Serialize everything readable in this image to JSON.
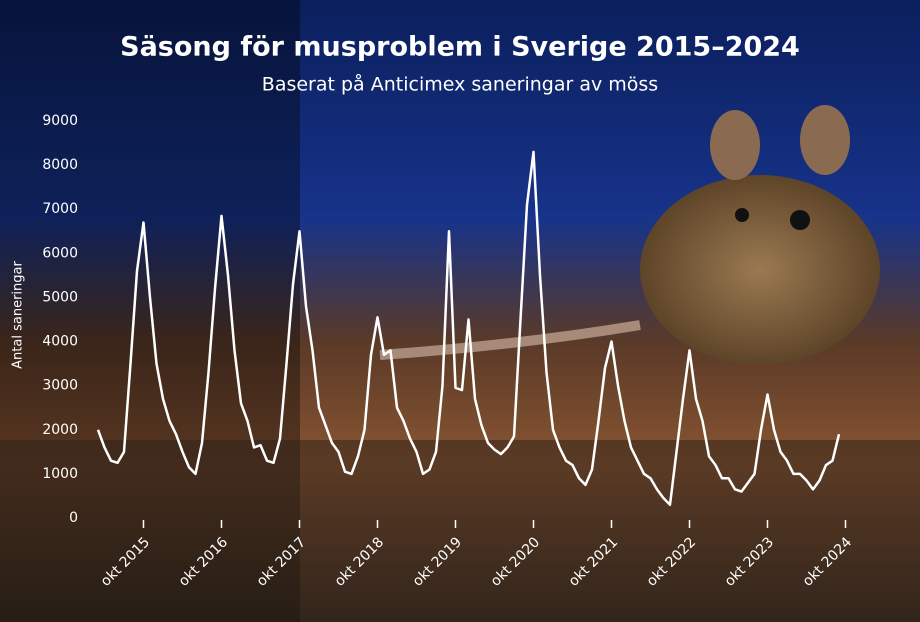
{
  "chart_data": {
    "type": "line",
    "title": "Säsong för musproblem i Sverige 2015–2024",
    "subtitle": "Baserat på Anticimex saneringar av möss",
    "y_label": "Antal saneringar",
    "color": "#ffffff",
    "ylim": [
      0,
      9000
    ],
    "yticks": [
      0,
      1000,
      2000,
      3000,
      4000,
      5000,
      6000,
      7000,
      8000,
      9000
    ],
    "categories": [
      null,
      null,
      null,
      null,
      null,
      null,
      null,
      "okt 2015",
      null,
      null,
      null,
      null,
      null,
      null,
      null,
      null,
      null,
      null,
      null,
      "okt 2016",
      null,
      null,
      null,
      null,
      null,
      null,
      null,
      null,
      null,
      null,
      null,
      "okt 2017",
      null,
      null,
      null,
      null,
      null,
      null,
      null,
      null,
      null,
      null,
      null,
      "okt 2018",
      null,
      null,
      null,
      null,
      null,
      null,
      null,
      null,
      null,
      null,
      null,
      "okt 2019",
      null,
      null,
      null,
      null,
      null,
      null,
      null,
      null,
      null,
      null,
      null,
      "okt 2020",
      null,
      null,
      null,
      null,
      null,
      null,
      null,
      null,
      null,
      null,
      null,
      "okt 2021",
      null,
      null,
      null,
      null,
      null,
      null,
      null,
      null,
      null,
      null,
      null,
      "okt 2022",
      null,
      null,
      null,
      null,
      null,
      null,
      null,
      null,
      null,
      null,
      null,
      "okt 2023",
      null,
      null,
      null,
      null,
      null,
      null,
      null,
      null,
      null,
      null,
      null,
      "okt 2024"
    ],
    "values": [
      2000,
      1600,
      1300,
      1250,
      1500,
      3500,
      5600,
      6700,
      5000,
      3500,
      2700,
      2200,
      1900,
      1500,
      1150,
      1000,
      1700,
      3300,
      5200,
      6850,
      5500,
      3800,
      2600,
      2200,
      1600,
      1650,
      1300,
      1250,
      1800,
      3500,
      5300,
      6500,
      4800,
      3800,
      2500,
      2100,
      1700,
      1500,
      1050,
      1000,
      1400,
      2000,
      3700,
      4550,
      3700,
      3800,
      2500,
      2200,
      1800,
      1500,
      1000,
      1100,
      1500,
      3000,
      6500,
      2950,
      2900,
      4500,
      2700,
      2100,
      1700,
      1550,
      1450,
      1600,
      1850,
      4500,
      7100,
      8300,
      5500,
      3300,
      2000,
      1600,
      1300,
      1200,
      900,
      750,
      1100,
      2200,
      3400,
      4000,
      3000,
      2200,
      1600,
      1300,
      1000,
      900,
      650,
      450,
      300,
      1500,
      2700,
      3800,
      2700,
      2200,
      1400,
      1200,
      900,
      900,
      650,
      600,
      800,
      1000,
      2000,
      2800,
      2000,
      1500,
      1300,
      1000,
      1000,
      850,
      650,
      850,
      1200,
      1300,
      1900,
      null
    ]
  }
}
